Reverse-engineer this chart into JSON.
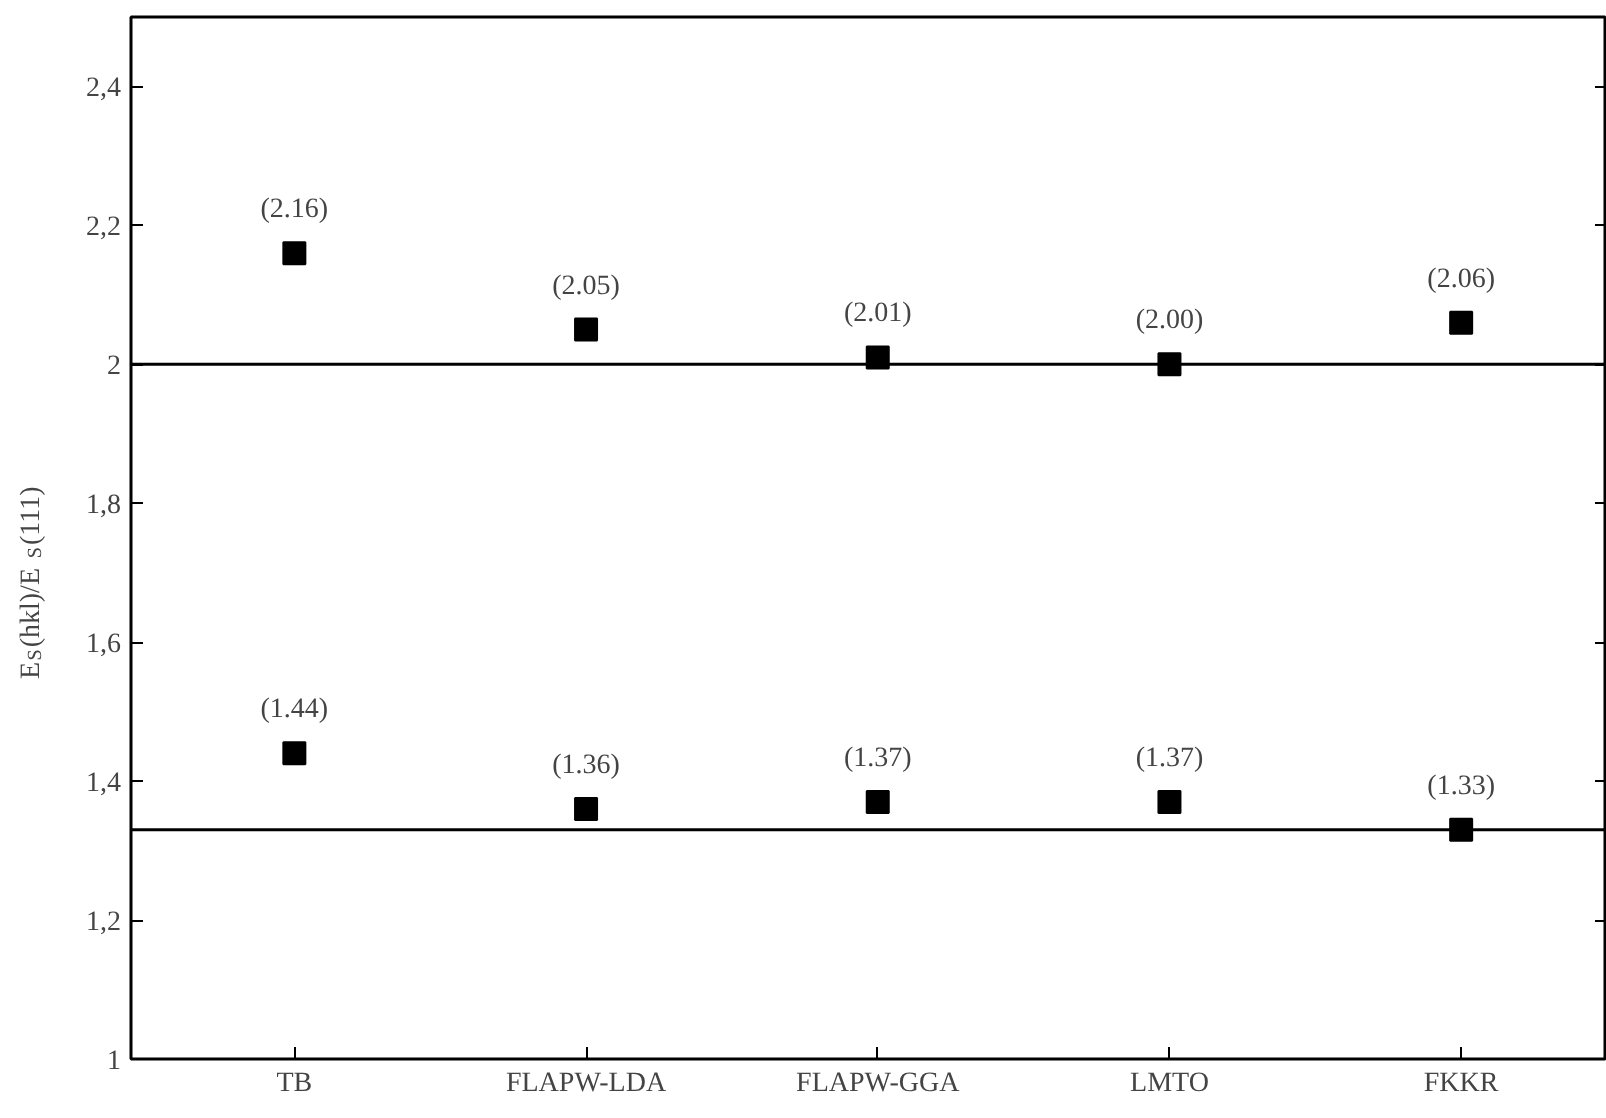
{
  "chart_data": {
    "type": "scatter",
    "ylabel": "E$_{S}$(hkl)/E$_{S}$(111)",
    "categories": [
      "TB",
      "FLAPW-LDA",
      "FLAPW-GGA",
      "LMTO",
      "FKKR"
    ],
    "series": [
      {
        "color": "#000000",
        "values": [
          2.16,
          2.05,
          2.01,
          2.0,
          2.06
        ],
        "value_labels": [
          "(2.16)",
          "(2.05)",
          "(2.01)",
          "(2.00)",
          "(2.06)"
        ]
      },
      {
        "color": "#000000",
        "values": [
          1.44,
          1.36,
          1.37,
          1.37,
          1.33
        ],
        "value_labels": [
          "(1.44)",
          "(1.36)",
          "(1.37)",
          "(1.37)",
          "(1.33)"
        ]
      }
    ],
    "marker": "square",
    "ylim": [
      1,
      2.5
    ],
    "yticks": [
      {
        "value": 1,
        "label": "1"
      },
      {
        "value": 1.2,
        "label": "1,2"
      },
      {
        "value": 1.4,
        "label": "1,4"
      },
      {
        "value": 1.6,
        "label": "1,6"
      },
      {
        "value": 1.8,
        "label": "1,8"
      },
      {
        "value": 2,
        "label": "2"
      },
      {
        "value": 2.2,
        "label": "2,2"
      },
      {
        "value": 2.4,
        "label": "2,4"
      }
    ],
    "ref_lines": [
      {
        "axis": "y",
        "value": 2,
        "color": "#000000"
      },
      {
        "axis": "y",
        "value": 1.33,
        "color": "#000000"
      }
    ],
    "grid": false,
    "legend": false
  }
}
